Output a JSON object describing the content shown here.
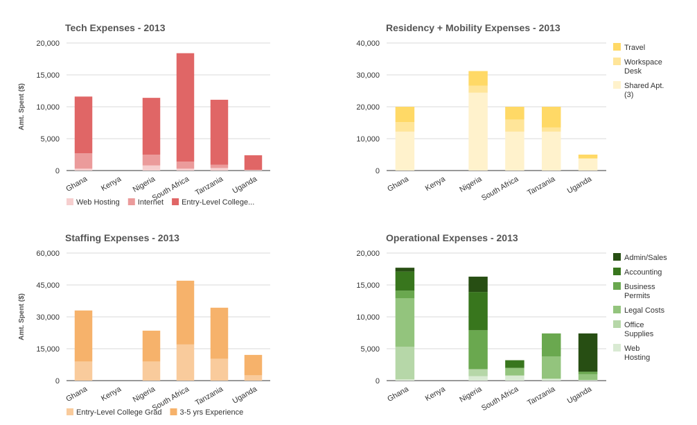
{
  "chart_data": [
    {
      "type": "bar",
      "stacked": true,
      "title": "Tech Expenses - 2013",
      "ylabel": "Amt. Spent ($)",
      "ylim": [
        0,
        20000
      ],
      "yticks": [
        "0",
        "5,000",
        "10,000",
        "15,000",
        "20,000"
      ],
      "categories": [
        "Ghana",
        "Kenya",
        "Nigeria",
        "South Africa",
        "Tanzania",
        "Uganda"
      ],
      "legend_position": "bottom",
      "series": [
        {
          "name": "Web Hosting",
          "color": "#f6cfcf",
          "values": [
            300,
            0,
            800,
            300,
            400,
            100
          ]
        },
        {
          "name": "Internet",
          "color": "#eb9b9b",
          "values": [
            2400,
            0,
            1700,
            1100,
            500,
            0
          ]
        },
        {
          "name": "Entry-Level College...",
          "color": "#e06666",
          "values": [
            8900,
            0,
            8900,
            17000,
            10200,
            2300
          ]
        }
      ]
    },
    {
      "type": "bar",
      "stacked": true,
      "title": "Residency + Mobility Expenses - 2013",
      "ylabel": "Amt. Spent ($)",
      "ylim": [
        0,
        40000
      ],
      "yticks": [
        "0",
        "10,000",
        "20,000",
        "30,000",
        "40,000"
      ],
      "categories": [
        "Ghana",
        "Kenya",
        "Nigeria",
        "South Africa",
        "Tanzania",
        "Uganda"
      ],
      "legend_position": "right",
      "series": [
        {
          "name": "Shared Apt. (3)",
          "color": "#fff2cc",
          "values": [
            12200,
            0,
            24400,
            12200,
            12200,
            3800
          ]
        },
        {
          "name": "Workspace Desk",
          "color": "#ffe599",
          "values": [
            3000,
            0,
            2200,
            3800,
            1300,
            0
          ]
        },
        {
          "name": "Travel",
          "color": "#ffd966",
          "values": [
            4800,
            0,
            4600,
            4000,
            6500,
            1200
          ]
        }
      ]
    },
    {
      "type": "bar",
      "stacked": true,
      "title": "Staffing Expenses - 2013",
      "ylabel": "Amt. Spent ($)",
      "ylim": [
        0,
        60000
      ],
      "yticks": [
        "0",
        "15,000",
        "30,000",
        "45,000",
        "60,000"
      ],
      "categories": [
        "Ghana",
        "Kenya",
        "Nigeria",
        "South Africa",
        "Tanzania",
        "Uganda"
      ],
      "legend_position": "bottom",
      "series": [
        {
          "name": "Entry-Level College Grad",
          "color": "#f9cb9c",
          "values": [
            9000,
            0,
            9000,
            17000,
            10300,
            2500
          ]
        },
        {
          "name": "3-5 yrs Experience",
          "color": "#f6b26b",
          "values": [
            24000,
            0,
            14500,
            30000,
            24000,
            9600
          ]
        }
      ]
    },
    {
      "type": "bar",
      "stacked": true,
      "title": "Operational Expenses - 2013",
      "ylabel": "Amt. Spent ($)",
      "ylim": [
        0,
        20000
      ],
      "yticks": [
        "0",
        "5,000",
        "10,000",
        "15,000",
        "20,000"
      ],
      "categories": [
        "Ghana",
        "Kenya",
        "Nigeria",
        "South Africa",
        "Tanzania",
        "Uganda"
      ],
      "legend_position": "right",
      "series": [
        {
          "name": "Web Hosting",
          "color": "#d9ead3",
          "values": [
            200,
            0,
            700,
            800,
            300,
            100
          ]
        },
        {
          "name": "Office Supplies",
          "color": "#b6d7a8",
          "values": [
            5100,
            0,
            1100,
            0,
            0,
            0
          ]
        },
        {
          "name": "Legal Costs",
          "color": "#93c47d",
          "values": [
            7600,
            0,
            0,
            1200,
            3500,
            900
          ]
        },
        {
          "name": "Business Permits",
          "color": "#6aa84f",
          "values": [
            1200,
            0,
            6100,
            0,
            3600,
            400
          ]
        },
        {
          "name": "Accounting",
          "color": "#38761d",
          "values": [
            3000,
            0,
            6000,
            1200,
            0,
            0
          ]
        },
        {
          "name": "Admin/Sales",
          "color": "#274e13",
          "values": [
            600,
            0,
            2400,
            0,
            0,
            6000
          ]
        }
      ]
    }
  ]
}
